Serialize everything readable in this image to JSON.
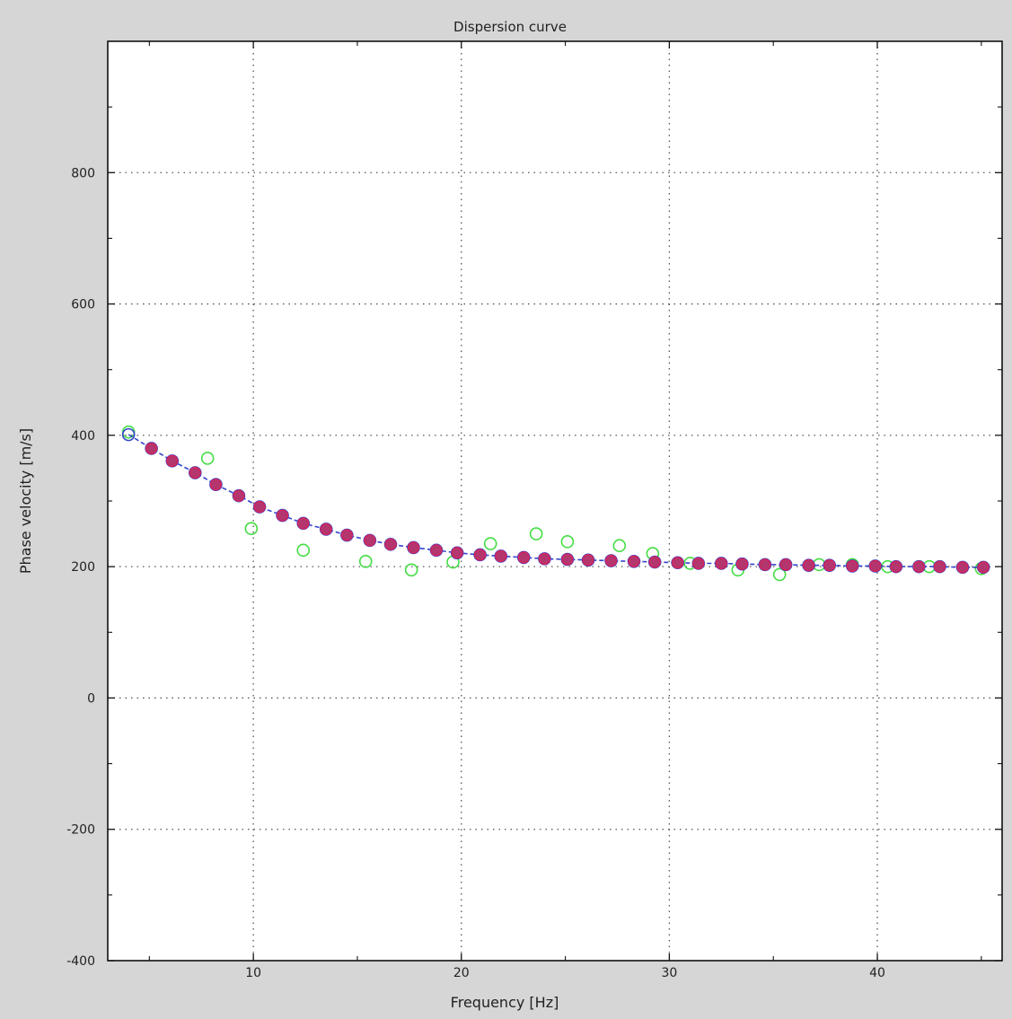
{
  "chart_data": {
    "type": "scatter",
    "title": "Dispersion curve",
    "xlabel": "Frequency [Hz]",
    "ylabel": "Phase velocity [m/s]",
    "xlim": [
      3,
      46
    ],
    "ylim": [
      -400,
      1000
    ],
    "xticks": [
      10,
      20,
      30,
      40
    ],
    "yticks": [
      -400,
      -200,
      0,
      200,
      400,
      600,
      800
    ],
    "grid": true,
    "colors": {
      "measured": "#44dd44",
      "model": "#3344cc",
      "fit": "#dd2255",
      "fit_fill": "#b3366e"
    },
    "series": [
      {
        "key": "measured",
        "marker": "open-circle",
        "x": [
          4.0,
          7.8,
          9.9,
          12.4,
          15.4,
          17.6,
          19.6,
          21.4,
          23.6,
          25.1,
          27.6,
          29.2,
          31.0,
          33.3,
          35.3,
          37.2,
          38.8,
          40.5,
          42.5,
          45.0
        ],
        "y": [
          405,
          365,
          258,
          225,
          208,
          195,
          207,
          235,
          250,
          238,
          232,
          220,
          205,
          195,
          188,
          203,
          203,
          200,
          200,
          197
        ]
      },
      {
        "key": "model",
        "marker": "open-circle",
        "line": true,
        "x": [
          4.0,
          5.1,
          6.1,
          7.2,
          8.2,
          9.3,
          10.3,
          11.4,
          12.4,
          13.5,
          14.5,
          15.6,
          16.6,
          17.7,
          18.8,
          19.8,
          20.9,
          21.9,
          23.0,
          24.0,
          25.1,
          26.1,
          27.2,
          28.3,
          29.3,
          30.4,
          31.4,
          32.5,
          33.5,
          34.6,
          35.6,
          36.7,
          37.7,
          38.8,
          39.9,
          40.9,
          42.0,
          43.0,
          44.1,
          45.1
        ],
        "y": [
          401,
          380,
          361,
          343,
          325,
          308,
          291,
          278,
          266,
          257,
          248,
          240,
          234,
          229,
          225,
          221,
          218,
          216,
          214,
          212,
          211,
          210,
          209,
          208,
          207,
          206,
          205,
          205,
          204,
          203,
          203,
          202,
          202,
          201,
          201,
          200,
          200,
          200,
          199,
          199
        ]
      },
      {
        "key": "fit",
        "marker": "filled-circle",
        "x": [
          5.1,
          6.1,
          7.2,
          8.2,
          9.3,
          10.3,
          11.4,
          12.4,
          13.5,
          14.5,
          15.6,
          16.6,
          17.7,
          18.8,
          19.8,
          20.9,
          21.9,
          23.0,
          24.0,
          25.1,
          26.1,
          27.2,
          28.3,
          29.3,
          30.4,
          31.4,
          32.5,
          33.5,
          34.6,
          35.6,
          36.7,
          37.7,
          38.8,
          39.9,
          40.9,
          42.0,
          43.0,
          44.1,
          45.1
        ],
        "y": [
          380,
          361,
          343,
          325,
          308,
          291,
          278,
          266,
          257,
          248,
          240,
          234,
          229,
          225,
          221,
          218,
          216,
          214,
          212,
          211,
          210,
          209,
          208,
          207,
          206,
          205,
          205,
          204,
          203,
          203,
          202,
          202,
          201,
          201,
          200,
          200,
          200,
          199,
          199
        ]
      }
    ]
  }
}
